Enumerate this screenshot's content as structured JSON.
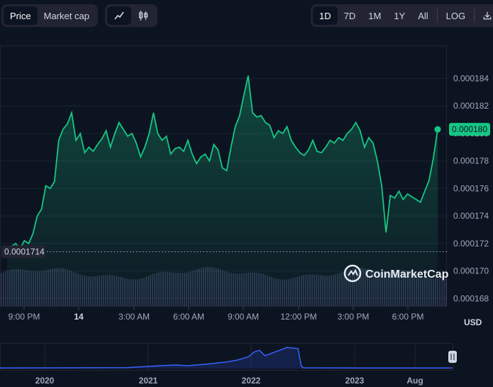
{
  "toolbar": {
    "metric_tabs": [
      "Price",
      "Market cap"
    ],
    "range_tabs": [
      "1D",
      "7D",
      "1M",
      "1Y",
      "All"
    ],
    "log_label": "LOG",
    "download_icon": "download-icon",
    "line_icon": "line-chart-icon",
    "candle_icon": "candlestick-icon"
  },
  "currency_label": "USD",
  "watermark": "CoinMarketCap",
  "chart_data": {
    "type": "area",
    "y_ticks": [
      "0.000184",
      "0.000182",
      "0.000180",
      "0.000178",
      "0.000176",
      "0.000174",
      "0.000172",
      "0.000170",
      "0.000168"
    ],
    "x_ticks": [
      "9:00 PM",
      "14",
      "3:00 AM",
      "6:00 AM",
      "9:00 AM",
      "12:00 PM",
      "3:00 PM",
      "6:00 PM"
    ],
    "ylim": [
      0.0001674,
      0.0001864
    ],
    "xlim": [
      0,
      100
    ],
    "current_price_label": "0.000180",
    "reference_label": "0.0001714",
    "reference_value": 0.0001714,
    "series": [
      {
        "values": [
          [
            0.0,
            0.0001713
          ],
          [
            1.0,
            0.0001718
          ],
          [
            2.0,
            0.000172
          ],
          [
            3.0,
            0.0001716
          ],
          [
            4.0,
            0.0001722
          ],
          [
            5.0,
            0.000172
          ],
          [
            6.0,
            0.0001727
          ],
          [
            7.0,
            0.000174
          ],
          [
            8.0,
            0.0001745
          ],
          [
            9.0,
            0.0001762
          ],
          [
            10.0,
            0.000176
          ],
          [
            11.0,
            0.0001765
          ],
          [
            12.0,
            0.0001795
          ],
          [
            13.0,
            0.0001803
          ],
          [
            14.0,
            0.0001807
          ],
          [
            15.0,
            0.0001815
          ],
          [
            16.0,
            0.0001795
          ],
          [
            17.0,
            0.00018
          ],
          [
            18.0,
            0.0001786
          ],
          [
            19.0,
            0.000179
          ],
          [
            20.0,
            0.0001787
          ],
          [
            21.0,
            0.0001792
          ],
          [
            22.0,
            0.0001796
          ],
          [
            23.0,
            0.0001802
          ],
          [
            24.0,
            0.000179
          ],
          [
            25.0,
            0.00018
          ],
          [
            26.0,
            0.0001808
          ],
          [
            27.0,
            0.0001803
          ],
          [
            28.0,
            0.0001798
          ],
          [
            29.0,
            0.00018
          ],
          [
            30.0,
            0.0001793
          ],
          [
            31.0,
            0.0001783
          ],
          [
            32.0,
            0.000179
          ],
          [
            33.0,
            0.00018
          ],
          [
            34.0,
            0.0001815
          ],
          [
            35.0,
            0.00018
          ],
          [
            36.0,
            0.0001795
          ],
          [
            37.0,
            0.0001798
          ],
          [
            38.0,
            0.0001785
          ],
          [
            39.0,
            0.0001789
          ],
          [
            40.0,
            0.000179
          ],
          [
            41.0,
            0.0001787
          ],
          [
            42.0,
            0.0001795
          ],
          [
            43.0,
            0.0001785
          ],
          [
            44.0,
            0.0001778
          ],
          [
            45.0,
            0.0001783
          ],
          [
            46.0,
            0.0001785
          ],
          [
            47.0,
            0.000178
          ],
          [
            48.0,
            0.0001792
          ],
          [
            49.0,
            0.0001788
          ],
          [
            50.0,
            0.0001775
          ],
          [
            51.0,
            0.0001773
          ],
          [
            52.0,
            0.000179
          ],
          [
            53.0,
            0.0001805
          ],
          [
            54.0,
            0.0001813
          ],
          [
            55.0,
            0.0001828
          ],
          [
            56.0,
            0.0001842
          ],
          [
            57.0,
            0.0001815
          ],
          [
            58.0,
            0.0001812
          ],
          [
            59.0,
            0.0001813
          ],
          [
            60.0,
            0.0001808
          ],
          [
            61.0,
            0.0001806
          ],
          [
            62.0,
            0.0001797
          ],
          [
            63.0,
            0.0001802
          ],
          [
            64.0,
            0.00018
          ],
          [
            65.0,
            0.0001805
          ],
          [
            66.0,
            0.0001795
          ],
          [
            67.0,
            0.000179
          ],
          [
            68.0,
            0.0001786
          ],
          [
            69.0,
            0.0001784
          ],
          [
            70.0,
            0.0001788
          ],
          [
            71.0,
            0.0001795
          ],
          [
            72.0,
            0.0001787
          ],
          [
            73.0,
            0.0001786
          ],
          [
            74.0,
            0.000179
          ],
          [
            75.0,
            0.0001795
          ],
          [
            76.0,
            0.0001793
          ],
          [
            77.0,
            0.0001797
          ],
          [
            78.0,
            0.0001795
          ],
          [
            79.0,
            0.00018
          ],
          [
            80.0,
            0.0001803
          ],
          [
            81.0,
            0.0001808
          ],
          [
            82.0,
            0.0001802
          ],
          [
            83.0,
            0.000179
          ],
          [
            84.0,
            0.0001797
          ],
          [
            85.0,
            0.0001793
          ],
          [
            86.0,
            0.000178
          ],
          [
            87.0,
            0.0001762
          ],
          [
            88.0,
            0.0001728
          ],
          [
            89.0,
            0.0001755
          ],
          [
            90.0,
            0.0001753
          ],
          [
            91.0,
            0.0001758
          ],
          [
            92.0,
            0.0001752
          ],
          [
            93.0,
            0.0001756
          ],
          [
            94.0,
            0.0001754
          ],
          [
            95.0,
            0.0001752
          ],
          [
            96.0,
            0.000175
          ],
          [
            97.0,
            0.0001758
          ],
          [
            98.0,
            0.0001766
          ],
          [
            99.0,
            0.0001782
          ],
          [
            100.0,
            0.0001803
          ]
        ]
      }
    ]
  },
  "navigator": {
    "year_labels": [
      "2020",
      "2021",
      "2022",
      "2023",
      "Aug"
    ],
    "xlim": [
      2019.65,
      2023.75
    ],
    "ylim": [
      0,
      1
    ],
    "values": [
      [
        2019.65,
        0.02
      ],
      [
        2020.3,
        0.03
      ],
      [
        2020.8,
        0.04
      ],
      [
        2020.95,
        0.08
      ],
      [
        2021.1,
        0.12
      ],
      [
        2021.25,
        0.15
      ],
      [
        2021.35,
        0.12
      ],
      [
        2021.55,
        0.2
      ],
      [
        2021.7,
        0.28
      ],
      [
        2021.8,
        0.36
      ],
      [
        2021.9,
        0.5
      ],
      [
        2021.95,
        0.7
      ],
      [
        2022.0,
        0.78
      ],
      [
        2022.05,
        0.55
      ],
      [
        2022.15,
        0.72
      ],
      [
        2022.25,
        0.9
      ],
      [
        2022.35,
        0.85
      ],
      [
        2022.38,
        0.1
      ],
      [
        2022.4,
        0.03
      ],
      [
        2023.0,
        0.02
      ],
      [
        2023.75,
        0.02
      ]
    ]
  }
}
